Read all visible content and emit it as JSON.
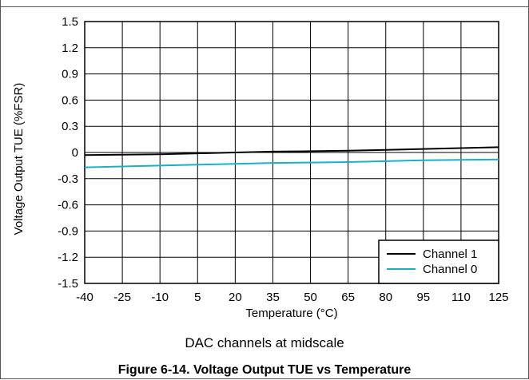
{
  "chart_data": {
    "type": "line",
    "title": "",
    "xlabel": "Temperature (°C)",
    "ylabel": "Voltage Output TUE (%FSR)",
    "x": [
      -40,
      -25,
      -10,
      5,
      20,
      35,
      50,
      65,
      80,
      95,
      110,
      125
    ],
    "xticks": [
      "-40",
      "-25",
      "-10",
      "5",
      "20",
      "35",
      "50",
      "65",
      "80",
      "95",
      "110",
      "125"
    ],
    "yticks": [
      "1.5",
      "1.2",
      "0.9",
      "0.6",
      "0.3",
      "0",
      "-0.3",
      "-0.6",
      "-0.9",
      "-1.2",
      "-1.5"
    ],
    "xlim": [
      -40,
      125
    ],
    "ylim": [
      -1.5,
      1.5
    ],
    "grid": true,
    "legend_position": "bottom-right",
    "series": [
      {
        "name": "Channel 1",
        "color": "#000000",
        "values": [
          -0.03,
          -0.025,
          -0.02,
          -0.01,
          0.0,
          0.01,
          0.015,
          0.02,
          0.03,
          0.04,
          0.05,
          0.06
        ]
      },
      {
        "name": "Channel 0",
        "color": "#1ab0c8",
        "values": [
          -0.17,
          -0.16,
          -0.15,
          -0.14,
          -0.13,
          -0.12,
          -0.115,
          -0.11,
          -0.1,
          -0.09,
          -0.085,
          -0.08
        ]
      }
    ]
  },
  "note": "DAC channels at midscale",
  "caption": "Figure 6-14. Voltage Output TUE vs Temperature"
}
